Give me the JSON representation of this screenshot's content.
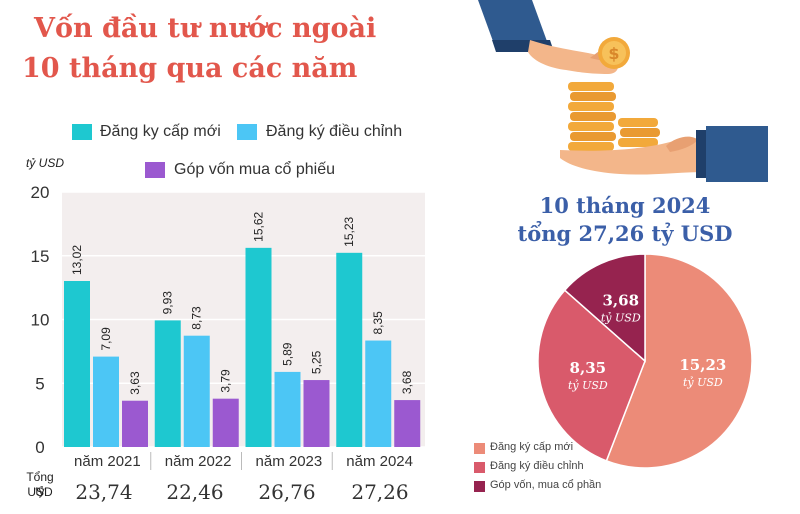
{
  "title_line1": "Vốn đầu tư nước ngoài",
  "title_line2": "10 tháng qua các năm",
  "legend": [
    {
      "label": "Đăng ky cấp mới",
      "color": "#1ec8d0"
    },
    {
      "label": "Đăng ký điều chỉnh",
      "color": "#4cc6f5"
    },
    {
      "label": "Góp vốn mua cổ phiếu",
      "color": "#9b59d0"
    }
  ],
  "total_label_line1": "Tổng tỷ",
  "total_label_line2": "USD",
  "totals": [
    "23,74",
    "22,46",
    "26,76",
    "27,26"
  ],
  "right_title_line1": "10 tháng 2024",
  "right_title_line2": "tổng 27,26 tỷ USD",
  "chart_data": [
    {
      "type": "bar",
      "ylabel": "tỷ USD",
      "ylim": [
        0,
        20
      ],
      "yticks": [
        0,
        5,
        10,
        15,
        20
      ],
      "grid": true,
      "legend_position": "top",
      "categories": [
        "năm 2021",
        "năm 2022",
        "năm 2023",
        "năm 2024"
      ],
      "series": [
        {
          "name": "Đăng ky cấp mới",
          "color": "#1ec8d0",
          "values": [
            13.02,
            9.93,
            15.62,
            15.23
          ],
          "labels": [
            "13,02",
            "9,93",
            "15,62",
            "15,23"
          ]
        },
        {
          "name": "Đăng ký điều chỉnh",
          "color": "#4cc6f5",
          "values": [
            7.09,
            8.73,
            5.89,
            8.35
          ],
          "labels": [
            "7,09",
            "8,73",
            "5,89",
            "8,35"
          ]
        },
        {
          "name": "Góp vốn mua cổ phiếu",
          "color": "#9b59d0",
          "values": [
            3.63,
            3.79,
            5.25,
            3.68
          ],
          "labels": [
            "3,63",
            "3,79",
            "5,25",
            "3,68"
          ]
        }
      ]
    },
    {
      "type": "pie",
      "slices": [
        {
          "name": "Đăng ký cấp mới",
          "value": 15.23,
          "label_value": "15,23",
          "label_unit": "tỷ USD",
          "color": "#ec8b78"
        },
        {
          "name": "Đăng ký điều chỉnh",
          "value": 8.35,
          "label_value": "8,35",
          "label_unit": "tỷ USD",
          "color": "#d95a6b"
        },
        {
          "name": "Góp vốn, mua cổ phần",
          "value": 3.68,
          "label_value": "3,68",
          "label_unit": "tỷ USD",
          "color": "#96234f"
        }
      ]
    }
  ]
}
